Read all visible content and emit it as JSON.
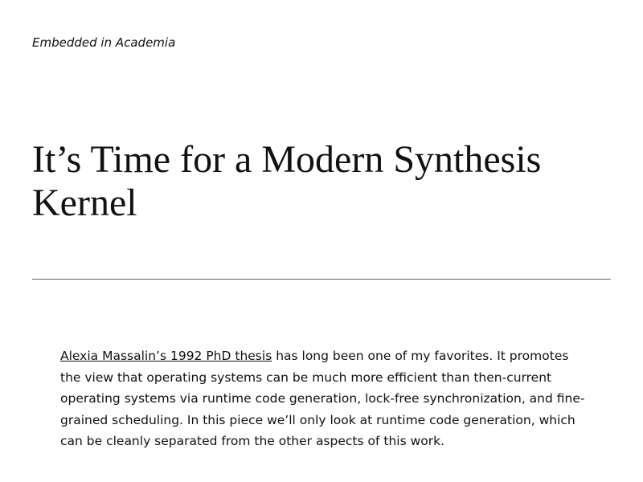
{
  "site": {
    "title": "Embedded in Academia"
  },
  "post": {
    "title": "It’s Time for a Modern Synthesis Kernel",
    "paragraph": {
      "link_text": "Alexia Massalin’s 1992 PhD thesis",
      "text": " has long been one of my favorites. It promotes the view that operating systems can be much more efficient than then-current operating systems via runtime code generation, lock-free synchronization, and fine-grained scheduling. In this piece we’ll only look at runtime code generation, which can be cleanly separated from the other aspects of this work."
    }
  }
}
